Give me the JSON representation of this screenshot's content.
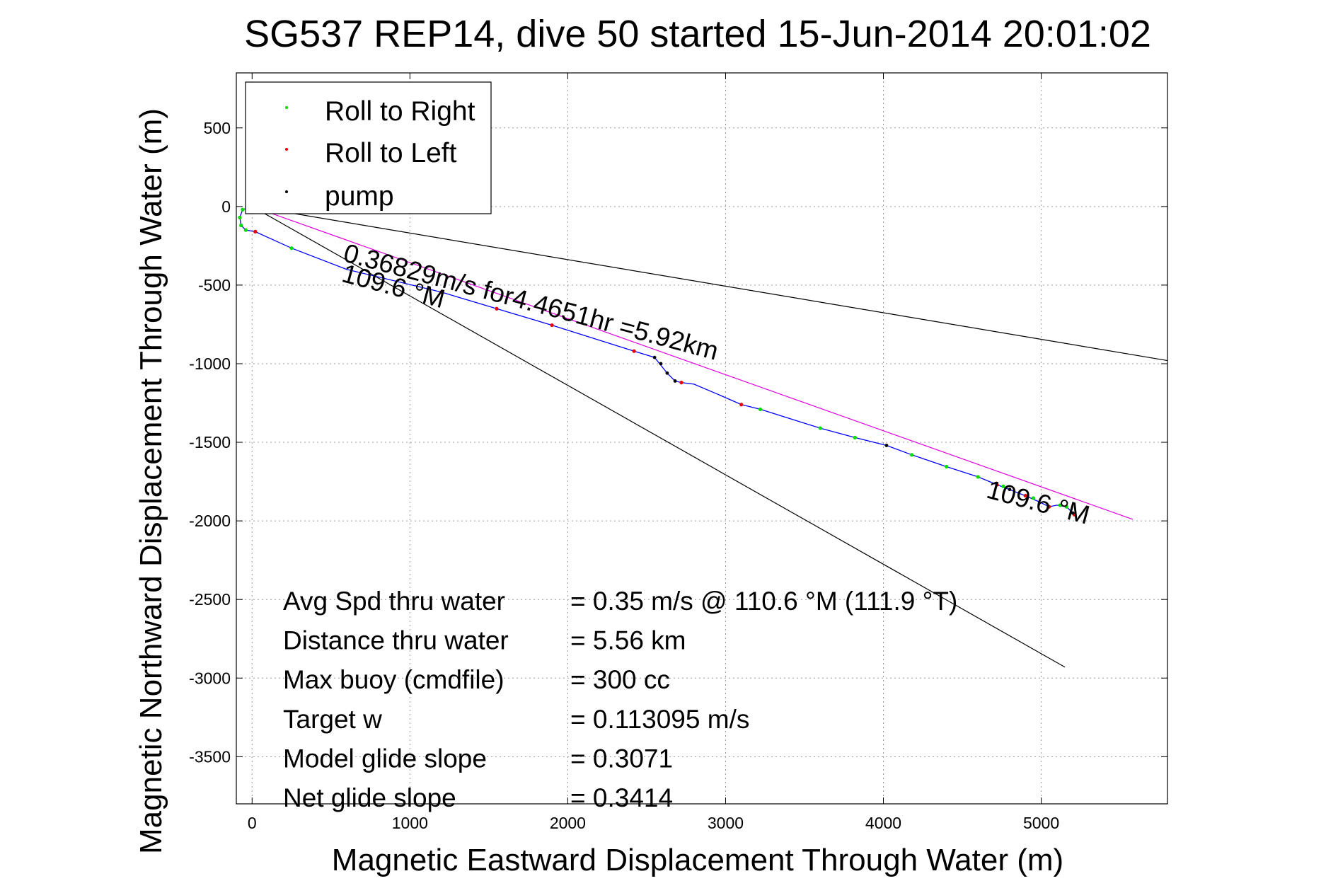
{
  "chart_data": {
    "type": "scatter",
    "title": "SG537 REP14, dive 50 started 15-Jun-2014 20:01:02",
    "xlabel": "Magnetic Eastward Displacement Through Water (m)",
    "ylabel": "Magnetic Northward Displacement Through Water (m)",
    "xlim": [
      -100,
      5800
    ],
    "ylim": [
      -3800,
      850
    ],
    "xticks": [
      0,
      1000,
      2000,
      3000,
      4000,
      5000
    ],
    "yticks": [
      500,
      0,
      -500,
      -1000,
      -1500,
      -2000,
      -2500,
      -3000,
      -3500
    ],
    "grid": true,
    "legend": {
      "placement": "top-left",
      "entries": [
        {
          "label": "Roll to Right",
          "color": "#00dd00"
        },
        {
          "label": "Roll to Left",
          "color": "#ee0000"
        },
        {
          "label": "pump",
          "color": "#000000"
        }
      ]
    },
    "track": {
      "color": "#0000ff",
      "x": [
        0,
        -60,
        -78,
        -70,
        -40,
        20,
        250,
        600,
        1200,
        1550,
        1900,
        2420,
        2550,
        2630,
        2680,
        2720,
        2800,
        2940,
        3100,
        3220,
        3600,
        3820,
        4020,
        4180,
        4400,
        4600,
        4720,
        4900,
        4990,
        5050,
        5100,
        5160,
        5210
      ],
      "y": [
        0,
        -20,
        -70,
        -120,
        -150,
        -160,
        -265,
        -400,
        -545,
        -650,
        -755,
        -920,
        -960,
        -1060,
        -1110,
        -1120,
        -1130,
        -1190,
        -1260,
        -1290,
        -1410,
        -1470,
        -1520,
        -1580,
        -1655,
        -1720,
        -1770,
        -1840,
        -1880,
        -1910,
        -1900,
        -1910,
        -1960
      ]
    },
    "roll_right_points": {
      "x": [
        0,
        -60,
        -78,
        -70,
        -40,
        250,
        1200,
        3220,
        3600,
        3820,
        4180,
        4400,
        4600,
        4760,
        4950,
        5120,
        5160
      ],
      "y": [
        0,
        -20,
        -70,
        -120,
        -150,
        -265,
        -545,
        -1290,
        -1410,
        -1470,
        -1580,
        -1655,
        -1720,
        -1780,
        -1855,
        -1900,
        -1910
      ]
    },
    "roll_left_points": {
      "x": [
        20,
        1200,
        1550,
        1900,
        2420,
        2720,
        3100,
        4720,
        4900,
        5050,
        5210
      ],
      "y": [
        -160,
        -545,
        -650,
        -755,
        -920,
        -1120,
        -1260,
        -1770,
        -1840,
        -1910,
        -1960
      ]
    },
    "pump_points": {
      "x": [
        2550,
        2590,
        2630,
        2680,
        4020,
        4800,
        5200
      ],
      "y": [
        -960,
        -1000,
        -1060,
        -1110,
        -1520,
        -1800,
        -1950
      ]
    },
    "heading_lines": [
      {
        "color": "#000000",
        "x": [
          0,
          5800
        ],
        "y": [
          0,
          -980
        ]
      },
      {
        "color": "#000000",
        "x": [
          0,
          5150
        ],
        "y": [
          0,
          -2930
        ]
      },
      {
        "color": "#dd00dd",
        "x": [
          0,
          5580
        ],
        "y": [
          0,
          -1990
        ]
      }
    ],
    "annotations": [
      {
        "text": "0.36829m/s for4.4651hr =5.92km",
        "x": 570,
        "y": -345,
        "angle": 14.9
      },
      {
        "text": "109.6 °M",
        "x": 560,
        "y": -475,
        "angle": 14.9
      },
      {
        "text": "109.6 °M",
        "x": 4645,
        "y": -1850,
        "angle": 14.9
      }
    ],
    "stats": [
      {
        "label": "Avg Spd thru water",
        "value": "=  0.35 m/s @ 110.6 °M (111.9 °T)"
      },
      {
        "label": "Distance thru water",
        "value": "=  5.56 km"
      },
      {
        "label": "Max buoy (cmdfile)",
        "value": "= 300 cc"
      },
      {
        "label": "Target w",
        "value": "= 0.113095 m/s"
      },
      {
        "label": "Model glide slope",
        "value": "= 0.3071"
      },
      {
        "label": "Net glide slope",
        "value": "= 0.3414"
      }
    ]
  }
}
